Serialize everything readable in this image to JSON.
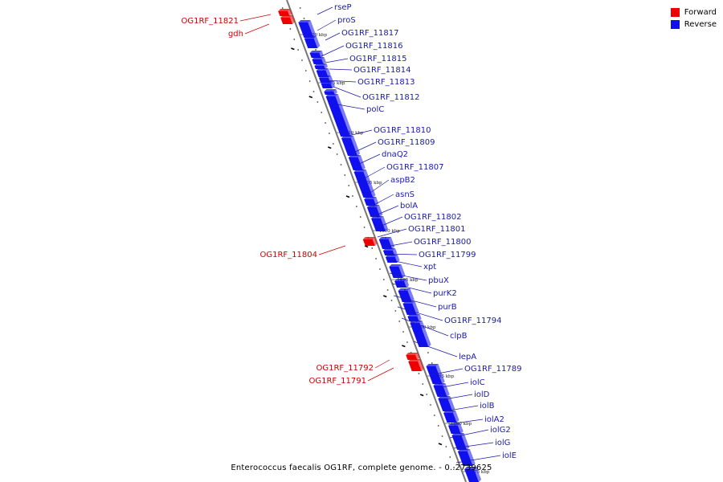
{
  "colors": {
    "forward": "#ee0000",
    "reverse": "#1010ee",
    "backbone": "#777777",
    "forward_label": "#cc0000",
    "reverse_label": "#1a1aa8"
  },
  "legend": {
    "forward_label": "Forward",
    "reverse_label": "Reverse"
  },
  "footer": {
    "caption": "Enterococcus faecalis OG1RF, complete genome. - 0..2739625"
  },
  "ticks": [
    "1920 kbp",
    "1915 kbp",
    "1910 kbp",
    "1905 kbp",
    "1900 kbp",
    "1895 kbp",
    "1890 kbp",
    "1885 kbp",
    "1880 kbp",
    "1875 kbp"
  ],
  "forward_genes": [
    "OG1RF_11821",
    "gdh",
    "OG1RF_11804",
    "OG1RF_11792",
    "OG1RF_11791"
  ],
  "reverse_genes": [
    "rseP",
    "proS",
    "OG1RF_11817",
    "OG1RF_11816",
    "OG1RF_11815",
    "OG1RF_11814",
    "OG1RF_11813",
    "OG1RF_11812",
    "polC",
    "OG1RF_11810",
    "OG1RF_11809",
    "dnaQ2",
    "OG1RF_11807",
    "aspB2",
    "asnS",
    "bolA",
    "OG1RF_11802",
    "OG1RF_11801",
    "OG1RF_11800",
    "OG1RF_11799",
    "xpt",
    "pbuX",
    "purK2",
    "purB",
    "OG1RF_11794",
    "clpB",
    "lepA",
    "OG1RF_11789",
    "iolC",
    "iolD",
    "iolB",
    "iolA2",
    "iolG2",
    "iolG",
    "iolE"
  ]
}
